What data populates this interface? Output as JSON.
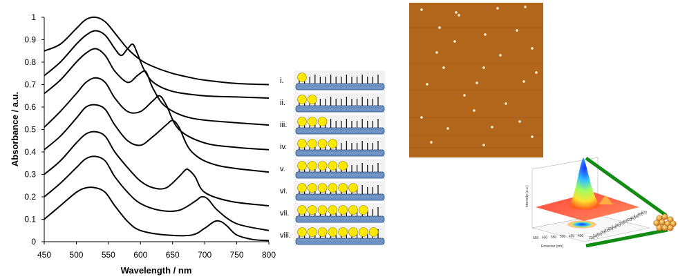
{
  "chart_data": {
    "type": "line",
    "xlabel": "Wavelength / nm",
    "ylabel": "Absorbance / a.u.",
    "xlim": [
      450,
      800
    ],
    "ylim": [
      0,
      1
    ],
    "x_ticks": [
      "450",
      "500",
      "550",
      "600",
      "650",
      "700",
      "750",
      "800"
    ],
    "y_ticks": [
      "0",
      "0.1",
      "0.2",
      "0.3",
      "0.4",
      "0.5",
      "0.6",
      "0.7",
      "0.8",
      "0.9",
      "1"
    ],
    "grid": false,
    "series": [
      {
        "name": "i.",
        "x": [
          450,
          475,
          500,
          515,
          530,
          545,
          560,
          580,
          600,
          620,
          650,
          680,
          700,
          750,
          800
        ],
        "y": [
          0.85,
          0.88,
          0.95,
          0.99,
          1.0,
          0.98,
          0.93,
          0.86,
          0.81,
          0.78,
          0.75,
          0.73,
          0.72,
          0.705,
          0.7
        ]
      },
      {
        "name": "ii.",
        "x": [
          450,
          475,
          500,
          515,
          530,
          545,
          560,
          570,
          580,
          588,
          595,
          605,
          620,
          650,
          700,
          750,
          800
        ],
        "y": [
          0.74,
          0.8,
          0.88,
          0.92,
          0.94,
          0.92,
          0.86,
          0.83,
          0.86,
          0.88,
          0.84,
          0.77,
          0.71,
          0.67,
          0.65,
          0.645,
          0.64
        ]
      },
      {
        "name": "iii.",
        "x": [
          450,
          475,
          500,
          515,
          530,
          545,
          560,
          580,
          595,
          605,
          610,
          620,
          640,
          680,
          750,
          800
        ],
        "y": [
          0.66,
          0.72,
          0.8,
          0.84,
          0.86,
          0.83,
          0.76,
          0.71,
          0.74,
          0.76,
          0.75,
          0.68,
          0.6,
          0.55,
          0.53,
          0.52
        ]
      },
      {
        "name": "iv.",
        "x": [
          450,
          475,
          500,
          515,
          530,
          545,
          560,
          580,
          600,
          620,
          630,
          640,
          660,
          700,
          750,
          800
        ],
        "y": [
          0.51,
          0.58,
          0.66,
          0.71,
          0.73,
          0.71,
          0.64,
          0.58,
          0.58,
          0.63,
          0.65,
          0.61,
          0.5,
          0.44,
          0.42,
          0.41
        ]
      },
      {
        "name": "v.",
        "x": [
          450,
          475,
          500,
          515,
          530,
          545,
          560,
          580,
          600,
          620,
          640,
          650,
          660,
          680,
          720,
          800
        ],
        "y": [
          0.41,
          0.47,
          0.55,
          0.6,
          0.61,
          0.59,
          0.52,
          0.45,
          0.43,
          0.47,
          0.52,
          0.54,
          0.51,
          0.4,
          0.34,
          0.31
        ]
      },
      {
        "name": "vi.",
        "x": [
          450,
          475,
          500,
          515,
          530,
          545,
          560,
          580,
          600,
          620,
          640,
          660,
          670,
          675,
          685,
          700,
          740,
          800
        ],
        "y": [
          0.3,
          0.36,
          0.44,
          0.48,
          0.49,
          0.47,
          0.4,
          0.33,
          0.27,
          0.24,
          0.24,
          0.29,
          0.32,
          0.32,
          0.29,
          0.22,
          0.18,
          0.16
        ]
      },
      {
        "name": "vii.",
        "x": [
          450,
          475,
          500,
          515,
          530,
          545,
          560,
          580,
          600,
          630,
          660,
          685,
          695,
          705,
          720,
          750,
          800
        ],
        "y": [
          0.2,
          0.26,
          0.33,
          0.37,
          0.38,
          0.36,
          0.29,
          0.22,
          0.17,
          0.14,
          0.14,
          0.18,
          0.2,
          0.19,
          0.14,
          0.08,
          0.05
        ]
      },
      {
        "name": "viii.",
        "x": [
          450,
          475,
          500,
          515,
          530,
          545,
          560,
          580,
          600,
          640,
          680,
          700,
          715,
          725,
          735,
          750,
          775,
          800
        ],
        "y": [
          0.1,
          0.16,
          0.22,
          0.24,
          0.24,
          0.22,
          0.16,
          0.09,
          0.05,
          0.03,
          0.03,
          0.06,
          0.09,
          0.09,
          0.07,
          0.03,
          0.01,
          0.005
        ]
      }
    ]
  },
  "schematic": {
    "row_labels": [
      "i.",
      "ii.",
      "iii.",
      "iv.",
      "v.",
      "vi.",
      "vii.",
      "viii."
    ],
    "particle_counts": [
      1,
      2,
      3,
      4,
      5,
      6,
      7,
      8
    ],
    "particle_color": "#ffe800",
    "tile_color": "#6f94c4"
  },
  "afm_image": {
    "background_color": "#b86a1e",
    "spot_color": "#fff3d0"
  },
  "surface_plot": {
    "z_label": "Intensity (a.u.)",
    "x_label": "Emission (nm)",
    "x_ticks": [
      "650",
      "600",
      "550",
      "500",
      "450",
      "400"
    ],
    "y_ticks": [
      "220",
      "240",
      "260",
      "280",
      "300",
      "320",
      "340",
      "360",
      "380",
      "400",
      "420",
      "440",
      "460",
      "480",
      "500"
    ],
    "frame_color": "#138c13",
    "cluster_color": "#e07010"
  }
}
